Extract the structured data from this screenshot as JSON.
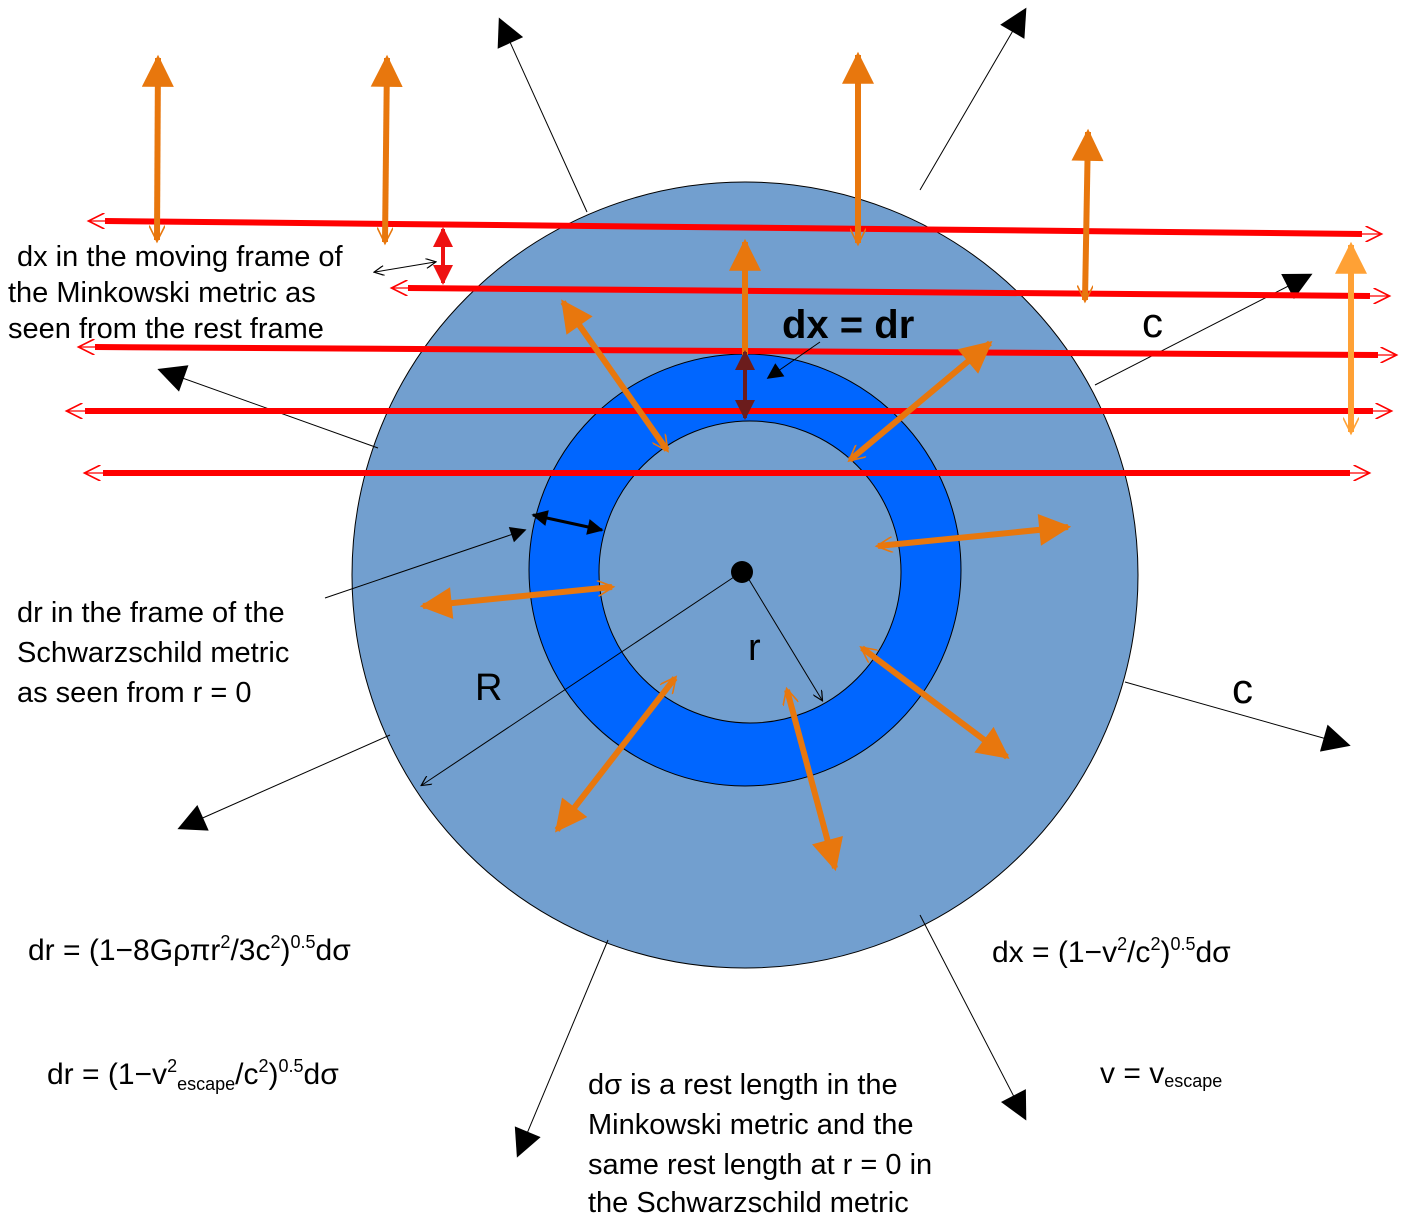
{
  "colors": {
    "outer_disk": "#729fcf",
    "inner_ring": "#0066ff",
    "red_line": "#ff0000",
    "orange_arrow": "#e8770d",
    "light_orange_arrow": "#ffa135",
    "dark_red_arrow": "#6b1c1c",
    "black": "#000000"
  },
  "labels": {
    "dx_moving_frame": [
      "dx in the moving frame of",
      "the Minkowski metric as",
      "seen from the rest frame"
    ],
    "dx_eq_dr": "dx = dr",
    "c_top": "c",
    "c_right": "c",
    "r_label": "r",
    "R_label": "R",
    "dr_schwarzschild": [
      "dr in the frame of the",
      "Schwarzschild metric",
      "as seen from r = 0"
    ],
    "formula_dr_1": {
      "a": "dr = (1−8Gρπr",
      "sup1": "2",
      "b": "/3c",
      "sup2": "2",
      "c": ")",
      "sup3": "0.5",
      "d": "dσ"
    },
    "formula_dr_2": {
      "a": "dr = (1−v",
      "sup1": "2",
      "sub1": "escape",
      "b": "/c",
      "sup2": "2",
      "c": ")",
      "sup3": "0.5",
      "d": "dσ"
    },
    "formula_dx": {
      "a": "dx = (1−v",
      "sup1": "2",
      "b": "/c",
      "sup2": "2",
      "c": ")",
      "sup3": "0.5",
      "d": "dσ"
    },
    "v_escape": {
      "a": "v = v",
      "sub": "escape"
    },
    "dsigma_note": [
      "dσ is a rest length in the",
      "Minkowski metric and the",
      "same rest length at r = 0 in",
      "the Schwarzschild metric"
    ]
  }
}
